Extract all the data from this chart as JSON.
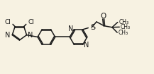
{
  "bg_color": "#f7f2e2",
  "line_color": "#1a1a1a",
  "line_width": 1.1,
  "font_size": 6.5,
  "figsize": [
    2.17,
    1.05
  ],
  "dpi": 100,
  "xlim": [
    0,
    10.5
  ],
  "ylim": [
    0,
    4.8
  ]
}
